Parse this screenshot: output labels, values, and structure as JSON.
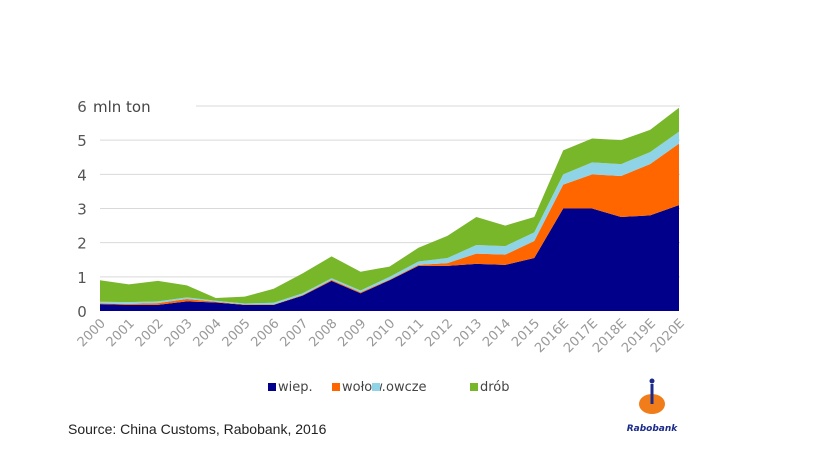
{
  "chart_data": {
    "type": "area",
    "stacked": true,
    "unit_label": "mln ton",
    "categories": [
      "2000",
      "2001",
      "2002",
      "2003",
      "2004",
      "2005",
      "2006",
      "2007",
      "2008",
      "2009",
      "2010",
      "2011",
      "2012",
      "2013",
      "2014",
      "2015",
      "2016E",
      "2017E",
      "2018E",
      "2019E",
      "2020E"
    ],
    "ylim": [
      0,
      6
    ],
    "yticks": [
      0,
      1,
      2,
      3,
      4,
      5,
      6
    ],
    "grid": true,
    "legend_placement": "bottom",
    "series": [
      {
        "name": "wiep.",
        "color": "#00008b",
        "values": [
          0.2,
          0.18,
          0.18,
          0.28,
          0.25,
          0.18,
          0.18,
          0.45,
          0.88,
          0.52,
          0.9,
          1.32,
          1.32,
          1.38,
          1.35,
          1.55,
          3.0,
          3.0,
          2.75,
          2.8,
          3.1
        ]
      },
      {
        "name": "wołow.",
        "color": "#ff6600",
        "values": [
          0.02,
          0.03,
          0.05,
          0.07,
          0.02,
          0.01,
          0.01,
          0.02,
          0.03,
          0.03,
          0.02,
          0.03,
          0.08,
          0.3,
          0.3,
          0.5,
          0.7,
          1.0,
          1.2,
          1.5,
          1.8
        ]
      },
      {
        "name": "owcze",
        "color": "#8fd3e6",
        "values": [
          0.05,
          0.05,
          0.05,
          0.05,
          0.03,
          0.03,
          0.05,
          0.05,
          0.05,
          0.05,
          0.08,
          0.1,
          0.15,
          0.25,
          0.25,
          0.25,
          0.3,
          0.35,
          0.35,
          0.35,
          0.35
        ]
      },
      {
        "name": "drób",
        "color": "#78b62a",
        "values": [
          0.63,
          0.52,
          0.6,
          0.35,
          0.08,
          0.2,
          0.41,
          0.58,
          0.64,
          0.55,
          0.3,
          0.4,
          0.65,
          0.82,
          0.6,
          0.45,
          0.7,
          0.7,
          0.7,
          0.65,
          0.7
        ]
      }
    ]
  },
  "source": "Source: China Customs, Rabobank, 2016",
  "logo_text": "Rabobank"
}
